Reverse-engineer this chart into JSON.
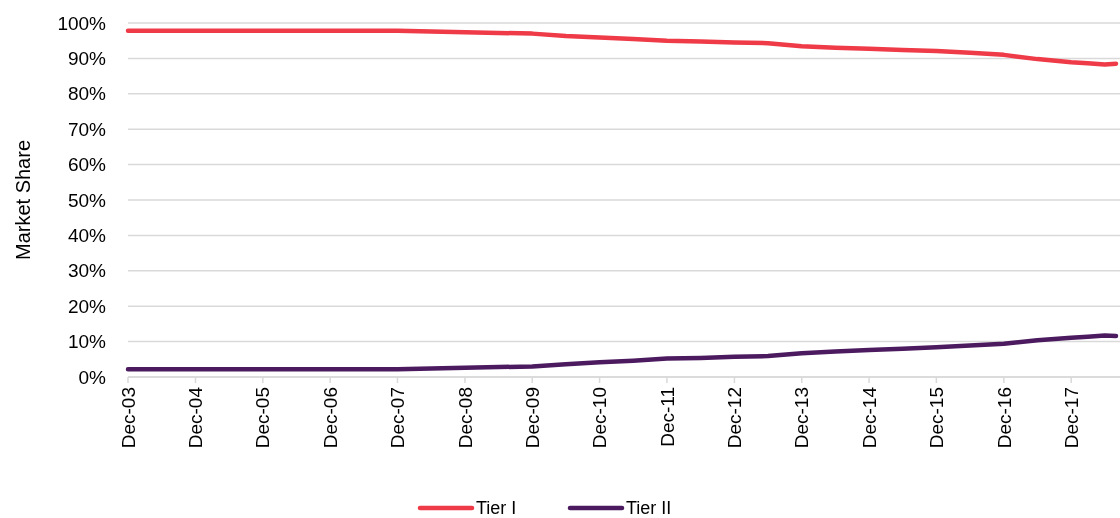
{
  "chart_data": {
    "type": "line",
    "ylabel": "Market Share",
    "x": [
      "2003-12",
      "2005-12",
      "2007-12",
      "2008-06",
      "2008-12",
      "2009-06",
      "2009-12",
      "2010-06",
      "2010-12",
      "2011-06",
      "2011-12",
      "2012-06",
      "2012-12",
      "2013-06",
      "2013-12",
      "2014-06",
      "2014-12",
      "2015-06",
      "2015-12",
      "2016-06",
      "2016-12",
      "2017-06",
      "2017-12",
      "2018-03",
      "2018-06",
      "2018-08"
    ],
    "series": [
      {
        "name": "Tier I",
        "color": "#ef3a47",
        "values": [
          97.8,
          97.8,
          97.8,
          97.6,
          97.4,
          97.2,
          97.0,
          96.3,
          95.9,
          95.5,
          95.0,
          94.8,
          94.5,
          94.3,
          93.4,
          93.0,
          92.7,
          92.4,
          92.1,
          91.6,
          91.0,
          89.8,
          88.9,
          88.6,
          88.3,
          88.5
        ]
      },
      {
        "name": "Tier II",
        "color": "#4b1a5f",
        "values": [
          2.2,
          2.2,
          2.2,
          2.4,
          2.6,
          2.8,
          3.0,
          3.6,
          4.2,
          4.6,
          5.2,
          5.4,
          5.7,
          5.9,
          6.7,
          7.2,
          7.6,
          8.0,
          8.4,
          8.9,
          9.4,
          10.4,
          11.1,
          11.4,
          11.7,
          11.6
        ]
      }
    ],
    "xlim": [
      "2003-12",
      "2018-08"
    ],
    "xticks": [
      {
        "value": "2003-12",
        "label": "Dec-03"
      },
      {
        "value": "2004-12",
        "label": "Dec-04"
      },
      {
        "value": "2005-12",
        "label": "Dec-05"
      },
      {
        "value": "2006-12",
        "label": "Dec-06"
      },
      {
        "value": "2007-12",
        "label": "Dec-07"
      },
      {
        "value": "2008-12",
        "label": "Dec-08"
      },
      {
        "value": "2009-12",
        "label": "Dec-09"
      },
      {
        "value": "2010-12",
        "label": "Dec-10"
      },
      {
        "value": "2011-12",
        "label": "Dec-11"
      },
      {
        "value": "2012-12",
        "label": "Dec-12"
      },
      {
        "value": "2013-12",
        "label": "Dec-13"
      },
      {
        "value": "2014-12",
        "label": "Dec-14"
      },
      {
        "value": "2015-12",
        "label": "Dec-15"
      },
      {
        "value": "2016-12",
        "label": "Dec-16"
      },
      {
        "value": "2017-12",
        "label": "Dec-17"
      }
    ],
    "ylim": [
      0,
      100
    ],
    "yticks": [
      {
        "value": 0,
        "label": "0%"
      },
      {
        "value": 10,
        "label": "10%"
      },
      {
        "value": 20,
        "label": "20%"
      },
      {
        "value": 30,
        "label": "30%"
      },
      {
        "value": 40,
        "label": "40%"
      },
      {
        "value": 50,
        "label": "50%"
      },
      {
        "value": 60,
        "label": "60%"
      },
      {
        "value": 70,
        "label": "70%"
      },
      {
        "value": 80,
        "label": "80%"
      },
      {
        "value": 90,
        "label": "90%"
      },
      {
        "value": 100,
        "label": "100%"
      }
    ],
    "grid": "y",
    "legend": "bottom",
    "marker": "none",
    "line_style": "solid"
  }
}
